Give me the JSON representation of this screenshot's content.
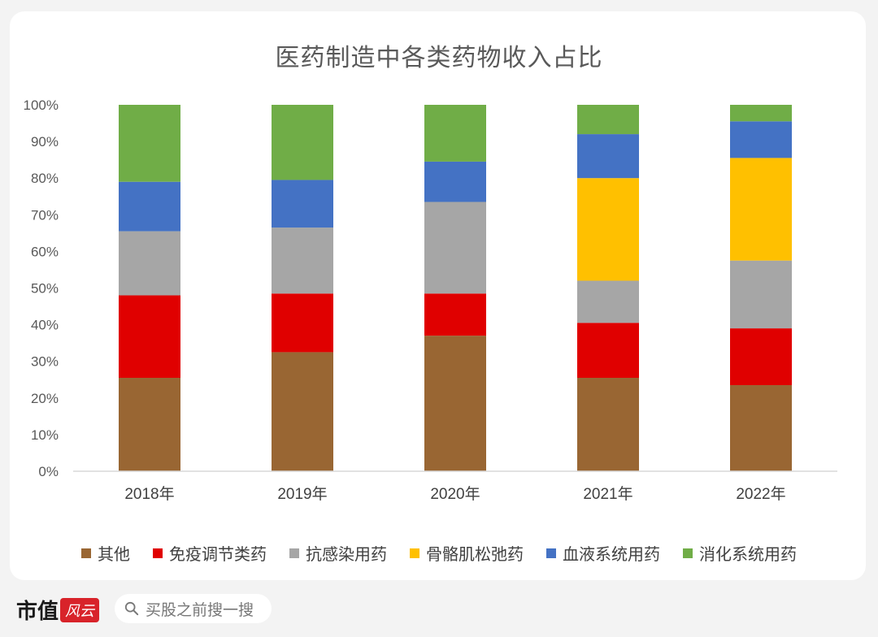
{
  "chart_data": {
    "type": "bar",
    "stacked": true,
    "title": "医药制造中各类药物收入占比",
    "categories": [
      "2018年",
      "2019年",
      "2020年",
      "2021年",
      "2022年"
    ],
    "y_ticks": [
      "0%",
      "10%",
      "20%",
      "30%",
      "40%",
      "50%",
      "60%",
      "70%",
      "80%",
      "90%",
      "100%"
    ],
    "ylim": [
      0,
      100
    ],
    "grid": false,
    "legend_position": "bottom",
    "series": [
      {
        "name": "其他",
        "color": "#996633",
        "values": [
          25.5,
          32.5,
          37.0,
          25.5,
          23.5
        ]
      },
      {
        "name": "免疫调节类药",
        "color": "#e00000",
        "values": [
          22.5,
          16.0,
          11.5,
          15.0,
          15.5
        ]
      },
      {
        "name": "抗感染用药",
        "color": "#a6a6a6",
        "values": [
          17.5,
          18.0,
          25.0,
          11.5,
          18.5
        ]
      },
      {
        "name": "骨骼肌松弛药",
        "color": "#ffc000",
        "values": [
          0,
          0,
          0,
          28.0,
          28.0
        ]
      },
      {
        "name": "血液系统用药",
        "color": "#4472c4",
        "values": [
          13.5,
          13.0,
          11.0,
          12.0,
          10.0
        ]
      },
      {
        "name": "消化系统用药",
        "color": "#70ad47",
        "values": [
          21.0,
          20.5,
          15.5,
          8.0,
          4.5
        ]
      }
    ]
  },
  "footer": {
    "brand_name": "市值",
    "brand_mark": "风云",
    "search_placeholder": "买股之前搜一搜"
  }
}
